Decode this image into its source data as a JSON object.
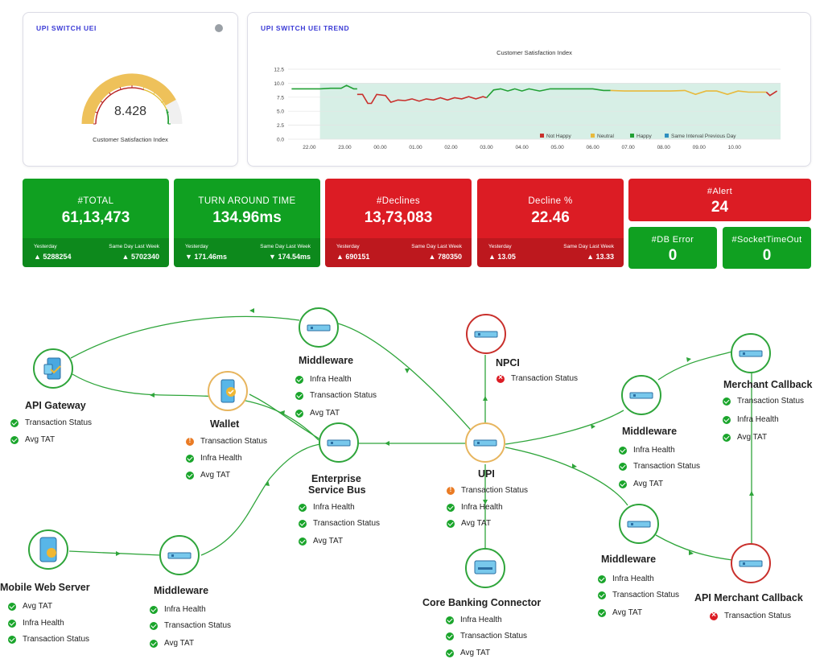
{
  "gauge_card": {
    "title": "UPI SWITCH UEI",
    "value": "8.428",
    "label": "Customer Satisfaction Index",
    "fill_fraction": 0.84
  },
  "trend_card": {
    "title": "UPI SWITCH UEI TREND"
  },
  "chart_data": {
    "type": "line",
    "title": "Customer Satisfaction Index",
    "x_ticks": [
      "22.00",
      "23.00",
      "00.00",
      "01.00",
      "02.00",
      "03.00",
      "04.00",
      "05.00",
      "06.00",
      "07.00",
      "08.00",
      "09.00",
      "10.00"
    ],
    "y_ticks": [
      "0.0",
      "2.5",
      "5.0",
      "7.5",
      "10.0",
      "12.5"
    ],
    "ylim": [
      0,
      12.5
    ],
    "grid": true,
    "legend_position": "bottom-right",
    "legend": [
      "Not Happy",
      "Neutral",
      "Happy",
      "Same Interval Previous Day"
    ],
    "colors": {
      "not_happy": "#c9302c",
      "neutral": "#e8b93c",
      "happy": "#22a035",
      "previous": "#d7efe6"
    },
    "series": [
      {
        "name": "Happy",
        "x": [
          21.5,
          21.9,
          22.3,
          22.6,
          22.9,
          23.05,
          23.25,
          23.35
        ],
        "values": [
          9.0,
          9.0,
          9.0,
          9.1,
          9.1,
          9.6,
          9.0,
          9.0
        ]
      },
      {
        "name": "Not Happy",
        "x": [
          23.35,
          23.5,
          23.65,
          23.75,
          23.9,
          24.15,
          24.3,
          24.5,
          24.7,
          24.9,
          25.1,
          25.3,
          25.5,
          25.7,
          25.9,
          26.1,
          26.3,
          26.5,
          26.7,
          26.9,
          27.0
        ],
        "values": [
          8.0,
          8.0,
          6.4,
          6.4,
          8.0,
          7.8,
          6.6,
          7.0,
          6.9,
          7.2,
          6.8,
          7.2,
          7.0,
          7.4,
          7.0,
          7.4,
          7.2,
          7.6,
          7.2,
          7.6,
          7.4
        ]
      },
      {
        "name": "Happy",
        "x": [
          27.0,
          27.2,
          27.4,
          27.6,
          27.8,
          28.0,
          28.2,
          28.5,
          28.8,
          29.1,
          29.4,
          29.7,
          30.0,
          30.3,
          30.5
        ],
        "values": [
          7.4,
          8.8,
          9.0,
          8.6,
          9.0,
          8.6,
          9.0,
          8.6,
          9.0,
          9.0,
          9.0,
          9.0,
          9.0,
          8.7,
          8.7
        ]
      },
      {
        "name": "Neutral",
        "x": [
          30.5,
          30.9,
          31.3,
          31.8,
          32.2,
          32.6,
          32.9,
          33.2,
          33.5,
          33.8,
          34.1,
          34.4,
          34.7,
          34.9
        ],
        "values": [
          8.7,
          8.6,
          8.6,
          8.6,
          8.6,
          8.7,
          8.0,
          8.6,
          8.6,
          8.0,
          8.6,
          8.4,
          8.4,
          8.4
        ]
      },
      {
        "name": "Not Happy",
        "x": [
          34.9,
          35.0,
          35.2
        ],
        "values": [
          8.4,
          7.8,
          8.6
        ]
      }
    ],
    "previous_day": {
      "name": "Same Interval Previous Day",
      "value": 10.0
    }
  },
  "tiles": {
    "total": {
      "label": "#TOTAL",
      "value": "61,13,473",
      "yest_label": "Yesterday",
      "yest_value": "▲ 5288254",
      "week_label": "Same Day Last Week",
      "week_value": "▲ 5702340"
    },
    "tat": {
      "label": "TURN AROUND TIME",
      "value": "134.96ms",
      "yest_label": "Yesterday",
      "yest_value": "▼ 171.46ms",
      "week_label": "Same Day Last Week",
      "week_value": "▼ 174.54ms"
    },
    "declines": {
      "label": "#Declines",
      "value": "13,73,083",
      "yest_label": "Yesterday",
      "yest_value": "▲ 690151",
      "week_label": "Same Day Last Week",
      "week_value": "▲ 780350"
    },
    "decline_pct": {
      "label": "Decline %",
      "value": "22.46",
      "yest_label": "Yesterday",
      "yest_value": "▲ 13.05",
      "week_label": "Same Day Last Week",
      "week_value": "▲ 13.33"
    },
    "alert": {
      "label": "#Alert",
      "value": "24"
    },
    "db_error": {
      "label": "#DB Error",
      "value": "0"
    },
    "socket_timeout": {
      "label": "#SocketTimeOut",
      "value": "0"
    }
  },
  "nodes": {
    "api_gateway": {
      "name": "API Gateway",
      "checks": [
        "Transaction Status",
        "Avg TAT"
      ]
    },
    "wallet": {
      "name": "Wallet",
      "checks": [
        "Transaction Status",
        "Infra Health",
        "Avg TAT"
      ]
    },
    "middleware_top": {
      "name": "Middleware",
      "checks": [
        "Infra Health",
        "Transaction Status",
        "Avg TAT"
      ]
    },
    "npci": {
      "name": "NPCI",
      "checks": [
        "Transaction Status"
      ]
    },
    "esb": {
      "name_line1": "Enterprise",
      "name_line2": "Service Bus",
      "checks": [
        "Infra Health",
        "Transaction Status",
        "Avg TAT"
      ]
    },
    "upi": {
      "name": "UPI",
      "checks": [
        "Transaction Status",
        "Infra Health",
        "Avg TAT"
      ]
    },
    "middleware_right": {
      "name": "Middleware",
      "checks": [
        "Infra Health",
        "Transaction Status",
        "Avg TAT"
      ]
    },
    "merchant_callback": {
      "name": "Merchant Callback",
      "checks": [
        "Transaction Status",
        "Infra Health",
        "Avg TAT"
      ]
    },
    "mobile_web": {
      "name": "Mobile Web Server",
      "checks": [
        "Avg TAT",
        "Infra Health",
        "Transaction Status"
      ]
    },
    "middleware_bottom": {
      "name": "Middleware",
      "checks": [
        "Infra Health",
        "Transaction Status",
        "Avg TAT"
      ]
    },
    "middleware_lower_right": {
      "name": "Middleware",
      "checks": [
        "Infra Health",
        "Transaction Status",
        "Avg TAT"
      ]
    },
    "core_banking": {
      "name": "Core Banking Connector",
      "checks": [
        "Infra Health",
        "Transaction Status",
        "Avg TAT"
      ]
    },
    "api_merchant_callback": {
      "name": "API Merchant Callback",
      "checks": [
        "Transaction Status"
      ]
    }
  }
}
